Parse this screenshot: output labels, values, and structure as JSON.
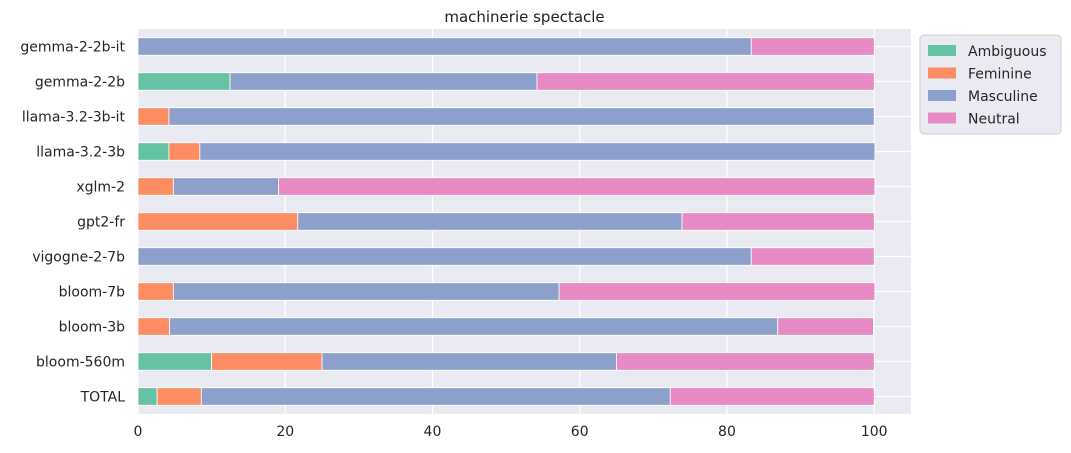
{
  "chart_data": {
    "type": "bar",
    "orientation": "horizontal",
    "stacked": true,
    "title": "machinerie spectacle",
    "xlabel": "",
    "ylabel": "",
    "xlim": [
      0,
      105
    ],
    "xticks": [
      0,
      20,
      40,
      60,
      80,
      100
    ],
    "grid": true,
    "legend_position": "upper right outside",
    "categories": [
      "gemma-2-2b-it",
      "gemma-2-2b",
      "llama-3.2-3b-it",
      "llama-3.2-3b",
      "xglm-2",
      "gpt2-fr",
      "vigogne-2-7b",
      "bloom-7b",
      "bloom-3b",
      "bloom-560m",
      "TOTAL"
    ],
    "series": [
      {
        "name": "Ambiguous",
        "color": "#66c2a5",
        "values": [
          0,
          12.5,
          0,
          4.2,
          0,
          0,
          0,
          0,
          0,
          10.0,
          2.6
        ]
      },
      {
        "name": "Feminine",
        "color": "#fc8d62",
        "values": [
          0,
          0,
          4.2,
          4.2,
          4.8,
          21.7,
          0,
          4.8,
          4.3,
          15.0,
          6.0
        ]
      },
      {
        "name": "Masculine",
        "color": "#8da0cb",
        "values": [
          83.3,
          41.7,
          95.8,
          91.7,
          14.3,
          52.2,
          83.3,
          52.4,
          82.6,
          40.0,
          63.7
        ]
      },
      {
        "name": "Neutral",
        "color": "#e78ac3",
        "values": [
          16.7,
          45.8,
          0,
          0,
          81.0,
          26.1,
          16.7,
          42.9,
          13.0,
          35.0,
          27.7
        ]
      }
    ]
  }
}
